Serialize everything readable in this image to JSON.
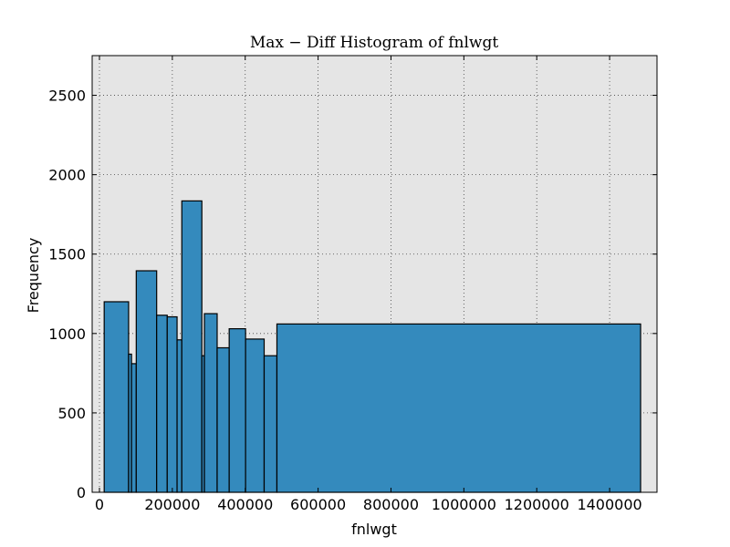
{
  "chart_data": {
    "type": "bar",
    "title": "Max − Diff Histogram of fnlwgt",
    "xlabel": "fnlwgt",
    "ylabel": "Frequency",
    "xlim": [
      -20000,
      1530000
    ],
    "ylim": [
      0,
      2750
    ],
    "xticks": [
      0,
      200000,
      400000,
      600000,
      800000,
      1000000,
      1200000,
      1400000
    ],
    "yticks": [
      0,
      500,
      1000,
      1500,
      2000,
      2500
    ],
    "grid": true,
    "colors": {
      "bar": "#348ABD",
      "plot_bg": "#E5E5E5",
      "edge": "#000000"
    },
    "bins": [
      {
        "x0": 13000,
        "x1": 80000,
        "value": 1200
      },
      {
        "x0": 80000,
        "x1": 88000,
        "value": 870
      },
      {
        "x0": 88000,
        "x1": 101000,
        "value": 810
      },
      {
        "x0": 101000,
        "x1": 157000,
        "value": 1395
      },
      {
        "x0": 157000,
        "x1": 186000,
        "value": 1115
      },
      {
        "x0": 186000,
        "x1": 213000,
        "value": 1105
      },
      {
        "x0": 213000,
        "x1": 226000,
        "value": 960
      },
      {
        "x0": 226000,
        "x1": 281000,
        "value": 1835
      },
      {
        "x0": 281000,
        "x1": 288000,
        "value": 860
      },
      {
        "x0": 288000,
        "x1": 323000,
        "value": 1125
      },
      {
        "x0": 323000,
        "x1": 356000,
        "value": 910
      },
      {
        "x0": 356000,
        "x1": 401000,
        "value": 1030
      },
      {
        "x0": 401000,
        "x1": 452000,
        "value": 965
      },
      {
        "x0": 452000,
        "x1": 487000,
        "value": 860
      },
      {
        "x0": 487000,
        "x1": 1485000,
        "value": 1060
      }
    ]
  }
}
